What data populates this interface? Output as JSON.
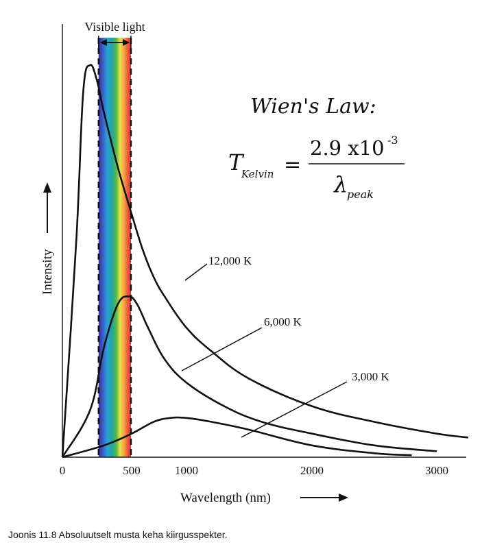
{
  "chart_data": {
    "type": "line",
    "xlabel": "Wavelength (nm)",
    "ylabel": "Intensity",
    "x_ticks": [
      "0",
      "500",
      "1000",
      "2000",
      "3000"
    ],
    "xlim": [
      0,
      3250
    ],
    "ylim": [
      0,
      1
    ],
    "visible_band": {
      "label": "Visible light",
      "range": [
        400,
        700
      ]
    },
    "series": [
      {
        "name": "12,000 K",
        "x": [
          0,
          100,
          150,
          200,
          250,
          300,
          400,
          500,
          600,
          700,
          800,
          1000,
          1200,
          1500,
          2000,
          2500,
          3000,
          3250
        ],
        "y": [
          0,
          0.55,
          0.93,
          1.0,
          0.96,
          0.88,
          0.74,
          0.62,
          0.53,
          0.46,
          0.41,
          0.33,
          0.27,
          0.2,
          0.13,
          0.09,
          0.06,
          0.05
        ]
      },
      {
        "name": "6,000 K",
        "x": [
          0,
          200,
          300,
          400,
          480,
          550,
          650,
          800,
          1000,
          1300,
          1600,
          2000,
          2500,
          3000
        ],
        "y": [
          0,
          0.12,
          0.28,
          0.39,
          0.41,
          0.39,
          0.33,
          0.25,
          0.19,
          0.13,
          0.09,
          0.06,
          0.03,
          0.015
        ]
      },
      {
        "name": "3,000 K",
        "x": [
          0,
          300,
          500,
          700,
          850,
          1000,
          1200,
          1500,
          2000,
          2500,
          2800
        ],
        "y": [
          0,
          0.03,
          0.06,
          0.09,
          0.1,
          0.1,
          0.09,
          0.07,
          0.03,
          0.01,
          0.005
        ]
      }
    ],
    "annotations": {
      "title": "Wien's Law:",
      "formula_lhs": "T",
      "formula_lhs_sub": "Kelvin",
      "formula_num": "2.9 x10",
      "formula_exp": "-3",
      "formula_den": "λ",
      "formula_den_sub": "peak",
      "equals": "="
    }
  },
  "caption": "Joonis 11.8 Absoluutselt musta keha kiirgusspekter."
}
